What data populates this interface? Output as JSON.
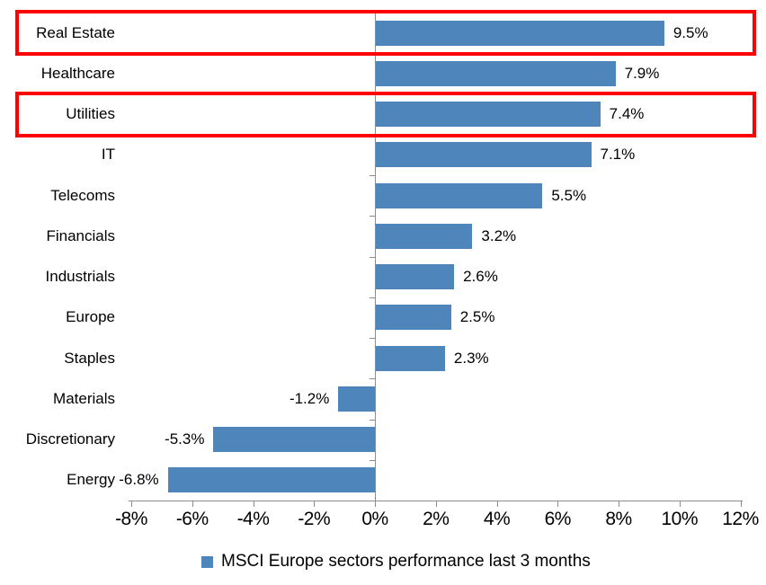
{
  "chart_data": {
    "type": "bar",
    "orientation": "horizontal",
    "title": "",
    "xlabel": "",
    "ylabel": "",
    "categories": [
      "Real Estate",
      "Healthcare",
      "Utilities",
      "IT",
      "Telecoms",
      "Financials",
      "Industrials",
      "Europe",
      "Staples",
      "Materials",
      "Discretionary",
      "Energy"
    ],
    "series": [
      {
        "name": "MSCI Europe sectors performance last 3 months",
        "values": [
          9.5,
          7.9,
          7.4,
          7.1,
          5.5,
          3.2,
          2.6,
          2.5,
          2.3,
          -1.2,
          -5.3,
          -6.8
        ],
        "data_labels": [
          "9.5%",
          "7.9%",
          "7.4%",
          "7.1%",
          "5.5%",
          "3.2%",
          "2.6%",
          "2.5%",
          "2.3%",
          "-1.2%",
          "-5.3%",
          "-6.8%"
        ]
      }
    ],
    "xlim": [
      -8,
      12
    ],
    "x_tick_values": [
      -8,
      -6,
      -4,
      -2,
      0,
      2,
      4,
      6,
      8,
      10,
      12
    ],
    "x_tick_labels": [
      "-8%",
      "-6%",
      "-4%",
      "-2%",
      "0%",
      "2%",
      "4%",
      "6%",
      "8%",
      "10%",
      "12%"
    ],
    "grid": "off",
    "legend_position": "bottom",
    "legend_label": "MSCI Europe sectors performance last 3 months",
    "highlighted_categories": [
      "Real Estate",
      "Utilities"
    ],
    "colors": {
      "bar": "#4E86BC",
      "axis": "#8C8C8C",
      "highlight_box": "#FF0000",
      "text": "#000000",
      "background": "#FFFFFF"
    }
  }
}
